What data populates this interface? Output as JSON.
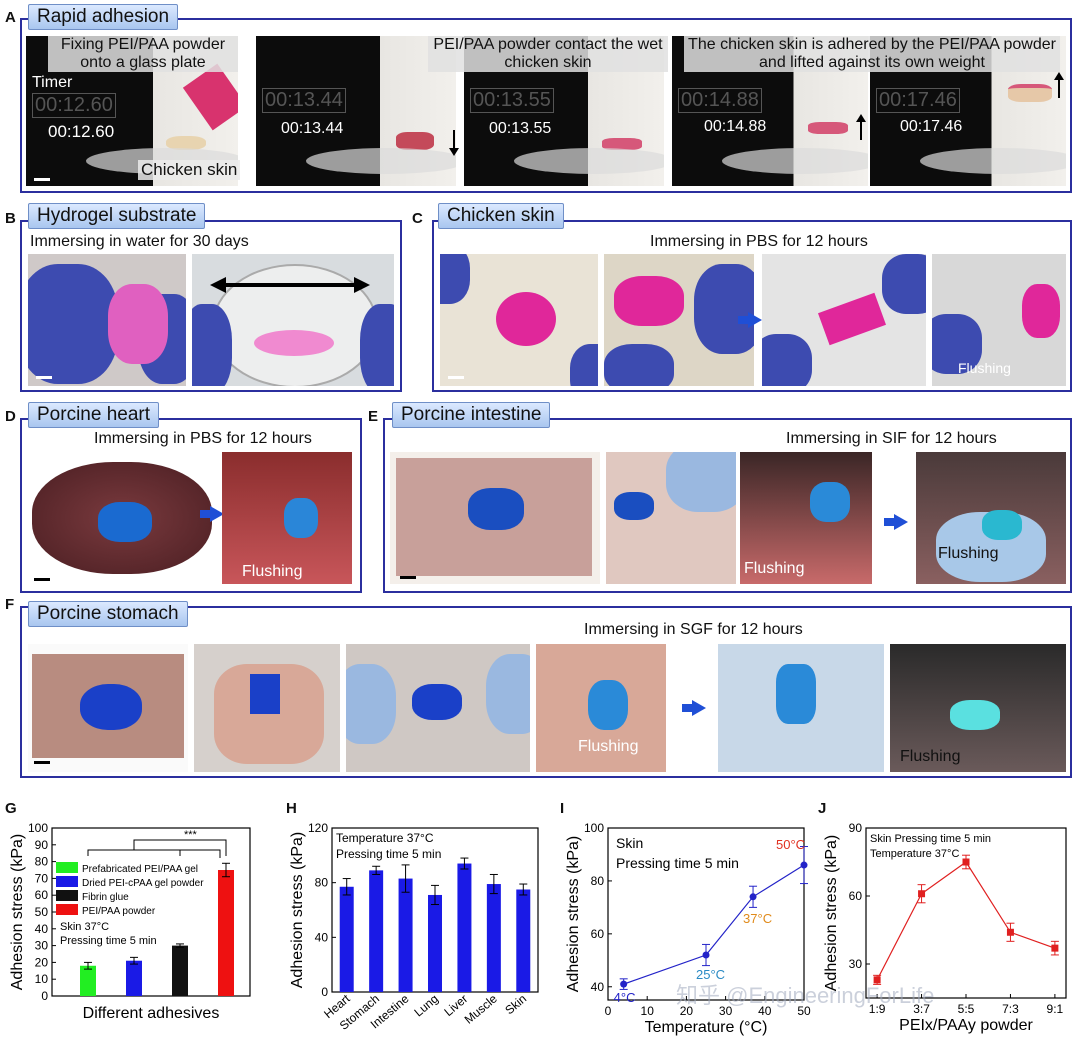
{
  "panels": {
    "A": {
      "letter": "A",
      "title": "Rapid adhesion",
      "captions": [
        "Fixing PEI/PAA powder onto a glass plate",
        "PEI/PAA powder contact the wet chicken skin",
        "The chicken skin is adhered by the PEI/PAA powder and lifted against its own weight"
      ],
      "timer_label": "Timer",
      "times": [
        "00:12.60",
        "00:13.44",
        "00:13.55",
        "00:14.88",
        "00:17.46"
      ],
      "chicken_label": "Chicken skin"
    },
    "B": {
      "letter": "B",
      "title": "Hydrogel  substrate",
      "caption": "Immersing in water for 30 days"
    },
    "C": {
      "letter": "C",
      "title": "Chicken skin",
      "caption": "Immersing in PBS for 12 hours",
      "flush": "Flushing"
    },
    "D": {
      "letter": "D",
      "title": "Porcine heart",
      "caption": "Immersing in PBS for 12 hours",
      "flush": "Flushing"
    },
    "E": {
      "letter": "E",
      "title": "Porcine intestine",
      "caption": "Immersing in SIF for 12 hours",
      "flush1": "Flushing",
      "flush2": "Flushing"
    },
    "F": {
      "letter": "F",
      "title": "Porcine stomach",
      "caption": "Immersing in SGF for 12 hours",
      "flush1": "Flushing",
      "flush2": "Flushing"
    }
  },
  "watermark": "知乎 @EngineeringForLife",
  "chart_data": [
    {
      "letter": "G",
      "type": "bar",
      "xlabel": "Different adhesives",
      "ylabel": "Adhesion stress (kPa)",
      "ylim": [
        0,
        100
      ],
      "yticks": [
        0,
        10,
        20,
        30,
        40,
        50,
        60,
        70,
        80,
        90,
        100
      ],
      "series": [
        {
          "name": "Prefabricated PEI/PAA gel",
          "value": 18,
          "err": 2,
          "color": "#22ee22"
        },
        {
          "name": "Dried PEI-cPAA gel powder",
          "value": 21,
          "err": 2,
          "color": "#1a1ae6"
        },
        {
          "name": "Fibrin glue",
          "value": 30,
          "err": 1,
          "color": "#111111"
        },
        {
          "name": "PEI/PAA powder",
          "value": 75,
          "err": 4,
          "color": "#ee1111"
        }
      ],
      "annotations": [
        "Skin   37°C",
        "Pressing time 5 min"
      ],
      "significance": "***"
    },
    {
      "letter": "H",
      "type": "bar",
      "ylabel": "Adhesion stress (kPa)",
      "ylim": [
        0,
        120
      ],
      "yticks": [
        0,
        40,
        80,
        120
      ],
      "categories": [
        "Heart",
        "Stomach",
        "Intestine",
        "Lung",
        "Liver",
        "Muscle",
        "Skin"
      ],
      "values": [
        77,
        89,
        83,
        71,
        94,
        79,
        75
      ],
      "errors": [
        6,
        3,
        10,
        7,
        4,
        7,
        4
      ],
      "color": "#1a1ae6",
      "annotations": [
        "Temperature 37°C",
        "Pressing time 5 min"
      ]
    },
    {
      "letter": "I",
      "type": "line",
      "xlabel": "Temperature (°C)",
      "ylabel": "Adhesion stress (kPa)",
      "xlim": [
        0,
        50
      ],
      "ylim": [
        35,
        100
      ],
      "xticks": [
        0,
        10,
        20,
        30,
        40,
        50
      ],
      "yticks": [
        40,
        60,
        80,
        100
      ],
      "x": [
        4,
        25,
        37,
        50
      ],
      "y": [
        41,
        52,
        74,
        86
      ],
      "errors": [
        2,
        4,
        4,
        7
      ],
      "color": "#2323c8",
      "point_labels": [
        {
          "text": "4°C",
          "color": "#2323c8"
        },
        {
          "text": "25°C",
          "color": "#2a8ac4"
        },
        {
          "text": "37°C",
          "color": "#e08a1a"
        },
        {
          "text": "50°C",
          "color": "#e03020"
        }
      ],
      "annotations": [
        "Skin",
        "Pressing time 5 min"
      ]
    },
    {
      "letter": "J",
      "type": "line",
      "xlabel": "PEIx/PAAy powder",
      "ylabel": "Adhesion stress (kPa)",
      "ylim": [
        15,
        90
      ],
      "yticks": [
        30,
        60,
        90
      ],
      "categories": [
        "1:9",
        "3:7",
        "5:5",
        "7:3",
        "9:1"
      ],
      "values": [
        23,
        61,
        75,
        44,
        37
      ],
      "errors": [
        2,
        4,
        3,
        4,
        3
      ],
      "color": "#e02020",
      "annotations": [
        "Skin  Pressing time 5 min",
        "Temperature 37°C"
      ]
    }
  ]
}
